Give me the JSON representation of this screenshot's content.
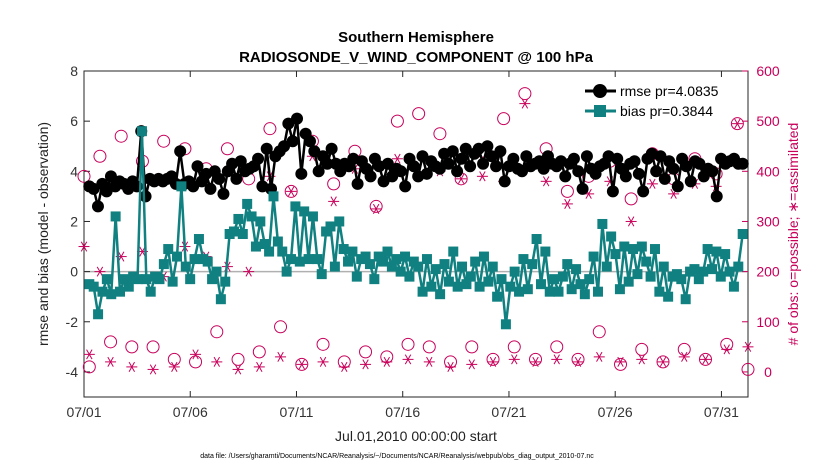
{
  "chart_data": {
    "type": "line",
    "title": "Southern Hemisphere",
    "subtitle": "RADIOSONDE_V_WIND_COMPONENT @ 100 hPa",
    "xlabel": "Jul.01,2010 00:00:00 start",
    "ylabel": "rmse and bias (model - observation)",
    "ylabel_right": "# of obs: o=possible; ∗=assimilated",
    "xlim": [
      0,
      31.25
    ],
    "ylim": [
      -5,
      8
    ],
    "ylim_right": [
      -50,
      600
    ],
    "x_ticks": [
      0,
      5,
      10,
      15,
      20,
      25,
      30
    ],
    "x_tick_labels": [
      "07/01",
      "07/06",
      "07/11",
      "07/16",
      "07/21",
      "07/26",
      "07/31"
    ],
    "y_ticks": [
      -4,
      -2,
      0,
      2,
      4,
      6,
      8
    ],
    "y_tick_labels": [
      "-4",
      "-2",
      "0",
      "2",
      "4",
      "6",
      "8"
    ],
    "y_ticks_right": [
      0,
      100,
      200,
      300,
      400,
      500,
      600
    ],
    "y_tick_labels_right": [
      "0",
      "100",
      "200",
      "300",
      "400",
      "500",
      "600"
    ],
    "legend_position": "top-right",
    "colors": {
      "rmse": "#000000",
      "bias": "#108080",
      "counts": "#c8005a",
      "zero_line": "#b0b0b0"
    },
    "series": [
      {
        "name": "rmse",
        "legend": "rmse pr=4.0835",
        "values": [
          3.4,
          3.3,
          2.6,
          3.5,
          3.2,
          3.8,
          3.4,
          3.6,
          3.5,
          3.3,
          3.6,
          3.4,
          5.6,
          3.0,
          3.7,
          3.6,
          3.7,
          3.6,
          3.7,
          3.8,
          3.5,
          4.8,
          3.5,
          3.6,
          3.4,
          4.2,
          3.6,
          3.9,
          3.3,
          4.0,
          3.7,
          3.1,
          4.0,
          4.3,
          3.7,
          4.4,
          4.0,
          4.1,
          4.2,
          4.5,
          3.4,
          4.9,
          3.3,
          4.6,
          4.8,
          5.0,
          5.9,
          5.2,
          6.1,
          3.9,
          5.5,
          5.2,
          4.8,
          4.0,
          4.6,
          4.3,
          4.9,
          4.3,
          4.0,
          4.3,
          4.2,
          4.5,
          3.5,
          4.4,
          4.1,
          3.8,
          4.5,
          4.2,
          3.6,
          4.3,
          3.8,
          4.1,
          4.0,
          3.4,
          4.5,
          4.2,
          3.8,
          4.6,
          3.9,
          4.4,
          4.2,
          4.1,
          4.7,
          4.3,
          4.8,
          4.0,
          4.5,
          4.9,
          4.2,
          4.7,
          4.9,
          4.3,
          5.0,
          4.6,
          4.2,
          4.8,
          3.6,
          4.2,
          4.5,
          4.1,
          4.0,
          4.6,
          4.2,
          4.3,
          4.4,
          4.1,
          4.6,
          4.3,
          4.2,
          4.4,
          3.8,
          4.3,
          4.5,
          4.0,
          3.3,
          4.6,
          4.1,
          3.9,
          4.2,
          4.3,
          4.6,
          3.2,
          4.5,
          4.1,
          3.8,
          4.3,
          4.4,
          3.9,
          3.2,
          4.5,
          4.7,
          4.0,
          4.6,
          3.7,
          4.4,
          4.1,
          3.4,
          4.5,
          4.2,
          3.6,
          4.4,
          4.3,
          3.8,
          4.1,
          4.0,
          3.0,
          4.5,
          4.3,
          4.4,
          4.5,
          4.3,
          4.3
        ]
      },
      {
        "name": "bias",
        "legend": "bias pr=0.3844",
        "values": [
          -0.5,
          -0.6,
          -1.7,
          -0.8,
          -0.3,
          -0.9,
          2.2,
          -0.8,
          -0.3,
          -0.6,
          -0.2,
          -0.3,
          5.6,
          -0.3,
          -0.8,
          -0.2,
          -0.3,
          0.3,
          0.9,
          -0.4,
          0.6,
          3.4,
          0.2,
          -0.3,
          0.5,
          1.3,
          0.5,
          0.4,
          -0.3,
          0.0,
          -1.1,
          -0.4,
          1.5,
          1.6,
          2.1,
          1.5,
          2.7,
          2.2,
          1.0,
          2.0,
          1.1,
          0.8,
          3.0,
          1.2,
          0.8,
          0.0,
          0.5,
          2.6,
          0.4,
          2.4,
          0.5,
          2.2,
          0.5,
          -0.1,
          1.6,
          1.8,
          0.2,
          2.0,
          0.9,
          0.4,
          0.8,
          -0.2,
          0.5,
          0.6,
          0.3,
          -0.3,
          0.6,
          0.4,
          0.8,
          0.2,
          0.5,
          0.0,
          0.6,
          -0.2,
          0.4,
          0.2,
          -0.8,
          0.5,
          -0.6,
          0.1,
          -0.9,
          0.3,
          -0.4,
          0.8,
          -0.6,
          0.2,
          -0.5,
          -0.2,
          0.4,
          -0.6,
          0.6,
          -0.4,
          0.2,
          -1.0,
          -0.3,
          -2.1,
          -0.6,
          0.0,
          -0.8,
          0.5,
          -0.7,
          0.3,
          1.3,
          -0.5,
          0.8,
          -0.8,
          -0.3,
          -0.8,
          -0.2,
          0.3,
          -0.7,
          0.1,
          -0.5,
          -0.9,
          -0.3,
          0.6,
          -0.8,
          1.9,
          0.2,
          1.4,
          0.7,
          -0.7,
          1.0,
          -0.4,
          0.9,
          -0.1,
          1.0,
          0.4,
          -0.2,
          0.9,
          -0.8,
          0.2,
          -1.0,
          -0.2,
          -0.1,
          -0.3,
          -1.1,
          0.0,
          0.1,
          -0.3,
          0.0,
          0.9,
          0.1,
          0.8,
          -0.2,
          0.7,
          0.0,
          -0.6,
          0.2,
          1.5
        ]
      }
    ],
    "counts_possible": [
      {
        "x": 0.0,
        "day": 390
      },
      {
        "x": 0.25,
        "night": 10
      },
      {
        "x": 0.75,
        "day": 430
      },
      {
        "x": 1.25,
        "night": 60
      },
      {
        "x": 1.75,
        "day": 470
      },
      {
        "x": 2.25,
        "night": 50
      },
      {
        "x": 2.75,
        "day": 420
      },
      {
        "x": 3.25,
        "night": 50
      },
      {
        "x": 3.75,
        "day": 460
      },
      {
        "x": 4.25,
        "night": 25
      },
      {
        "x": 4.75,
        "day": 445
      },
      {
        "x": 5.25,
        "night": 20
      },
      {
        "x": 5.75,
        "day": 405
      },
      {
        "x": 6.25,
        "night": 80
      },
      {
        "x": 6.75,
        "day": 445
      },
      {
        "x": 7.25,
        "night": 25
      },
      {
        "x": 7.75,
        "day": 385
      },
      {
        "x": 8.25,
        "night": 40
      },
      {
        "x": 8.75,
        "day": 485
      },
      {
        "x": 9.25,
        "night": 90
      },
      {
        "x": 9.75,
        "day": 360
      },
      {
        "x": 10.25,
        "night": 15
      },
      {
        "x": 10.75,
        "day": 460
      },
      {
        "x": 11.25,
        "night": 55
      },
      {
        "x": 11.75,
        "day": 375
      },
      {
        "x": 12.25,
        "night": 20
      },
      {
        "x": 12.75,
        "day": 440
      },
      {
        "x": 13.25,
        "night": 40
      },
      {
        "x": 13.75,
        "day": 330
      },
      {
        "x": 14.25,
        "night": 30
      },
      {
        "x": 14.75,
        "day": 500
      },
      {
        "x": 15.25,
        "night": 55
      },
      {
        "x": 15.75,
        "day": 515
      },
      {
        "x": 16.25,
        "night": 50
      },
      {
        "x": 16.75,
        "day": 475
      },
      {
        "x": 17.25,
        "night": 20
      },
      {
        "x": 17.75,
        "day": 385
      },
      {
        "x": 18.25,
        "night": 50
      },
      {
        "x": 18.75,
        "day": 440
      },
      {
        "x": 19.25,
        "night": 25
      },
      {
        "x": 19.75,
        "day": 505
      },
      {
        "x": 20.25,
        "night": 50
      },
      {
        "x": 20.75,
        "day": 555
      },
      {
        "x": 21.25,
        "night": 25
      },
      {
        "x": 21.75,
        "day": 445
      },
      {
        "x": 22.25,
        "night": 50
      },
      {
        "x": 22.75,
        "day": 360
      },
      {
        "x": 23.25,
        "night": 25
      },
      {
        "x": 23.75,
        "day": 390
      },
      {
        "x": 24.25,
        "night": 80
      },
      {
        "x": 24.75,
        "day": 420
      },
      {
        "x": 25.25,
        "night": 15
      },
      {
        "x": 25.75,
        "day": 345
      },
      {
        "x": 26.25,
        "night": 45
      },
      {
        "x": 26.75,
        "day": 435
      },
      {
        "x": 27.25,
        "night": 20
      },
      {
        "x": 27.75,
        "day": 385
      },
      {
        "x": 28.25,
        "night": 45
      },
      {
        "x": 28.75,
        "day": 425
      },
      {
        "x": 29.25,
        "night": 25
      },
      {
        "x": 29.75,
        "day": 395
      },
      {
        "x": 30.25,
        "night": 55
      },
      {
        "x": 30.75,
        "day": 495
      },
      {
        "x": 31.25,
        "night": 5
      }
    ],
    "counts_assimilated": [
      {
        "x": 0.0,
        "day": 250
      },
      {
        "x": 0.25,
        "night": 35
      },
      {
        "x": 0.75,
        "day": 200
      },
      {
        "x": 1.25,
        "night": 20
      },
      {
        "x": 1.75,
        "day": 230
      },
      {
        "x": 2.25,
        "night": 10
      },
      {
        "x": 2.75,
        "day": 240
      },
      {
        "x": 3.25,
        "night": 5
      },
      {
        "x": 3.75,
        "day": 190
      },
      {
        "x": 4.25,
        "night": 10
      },
      {
        "x": 4.75,
        "day": 250
      },
      {
        "x": 5.25,
        "night": 35
      },
      {
        "x": 5.75,
        "day": 230
      },
      {
        "x": 6.25,
        "night": 20
      },
      {
        "x": 6.75,
        "day": 210
      },
      {
        "x": 7.25,
        "night": 5
      },
      {
        "x": 7.75,
        "day": 200
      },
      {
        "x": 8.25,
        "night": 10
      },
      {
        "x": 8.75,
        "day": 390
      },
      {
        "x": 9.25,
        "night": 30
      },
      {
        "x": 9.75,
        "day": 360
      },
      {
        "x": 10.25,
        "night": 15
      },
      {
        "x": 10.75,
        "day": 430
      },
      {
        "x": 11.25,
        "night": 20
      },
      {
        "x": 11.75,
        "day": 340
      },
      {
        "x": 12.25,
        "night": 10
      },
      {
        "x": 12.75,
        "day": 405
      },
      {
        "x": 13.25,
        "night": 15
      },
      {
        "x": 13.75,
        "day": 325
      },
      {
        "x": 14.25,
        "night": 20
      },
      {
        "x": 14.75,
        "day": 425
      },
      {
        "x": 15.25,
        "night": 25
      },
      {
        "x": 15.75,
        "day": 390
      },
      {
        "x": 16.25,
        "night": 20
      },
      {
        "x": 16.75,
        "day": 400
      },
      {
        "x": 17.25,
        "night": 10
      },
      {
        "x": 17.75,
        "day": 385
      },
      {
        "x": 18.25,
        "night": 15
      },
      {
        "x": 18.75,
        "day": 390
      },
      {
        "x": 19.25,
        "night": 20
      },
      {
        "x": 19.75,
        "day": 380
      },
      {
        "x": 20.25,
        "night": 25
      },
      {
        "x": 20.75,
        "day": 535
      },
      {
        "x": 21.25,
        "night": 20
      },
      {
        "x": 21.75,
        "day": 380
      },
      {
        "x": 22.25,
        "night": 25
      },
      {
        "x": 22.75,
        "day": 335
      },
      {
        "x": 23.25,
        "night": 20
      },
      {
        "x": 23.75,
        "day": 355
      },
      {
        "x": 24.25,
        "night": 30
      },
      {
        "x": 24.75,
        "day": 380
      },
      {
        "x": 25.25,
        "night": 20
      },
      {
        "x": 25.75,
        "day": 300
      },
      {
        "x": 26.25,
        "night": 25
      },
      {
        "x": 26.75,
        "day": 375
      },
      {
        "x": 27.25,
        "night": 20
      },
      {
        "x": 27.75,
        "day": 355
      },
      {
        "x": 28.25,
        "night": 30
      },
      {
        "x": 28.75,
        "day": 375
      },
      {
        "x": 29.25,
        "night": 25
      },
      {
        "x": 29.75,
        "day": 370
      },
      {
        "x": 30.25,
        "night": 45
      },
      {
        "x": 30.75,
        "day": 495
      },
      {
        "x": 31.25,
        "night": 50
      }
    ]
  },
  "footer": "data file: /Users/gharamti/Documents/NCAR/Reanalysis/~/Documents/NCAR/Reanalysis/webpub/obs_diag_output_2010-07.nc"
}
